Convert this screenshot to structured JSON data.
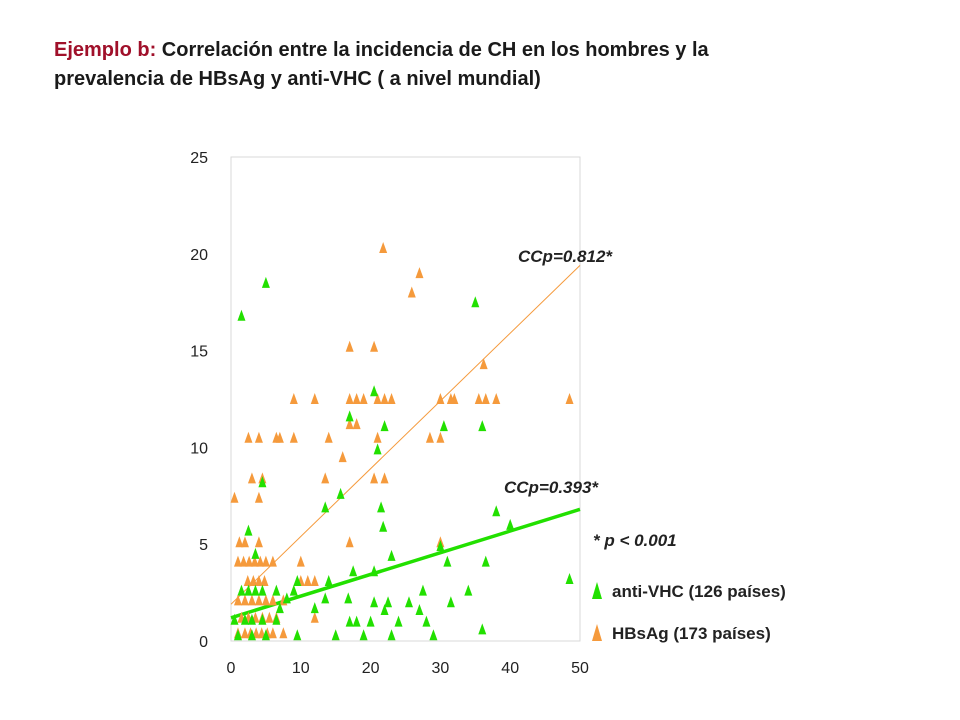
{
  "title": {
    "prefix": "Ejemplo b:",
    "line1": " Correlación entre la incidencia de CH en los hombres y la",
    "line2": "prevalencia de HBsAg y anti-VHC ( a nivel mundial)"
  },
  "chart_data": {
    "type": "scatter",
    "xlim": [
      0,
      50
    ],
    "ylim": [
      0,
      25
    ],
    "xticks": [
      "0",
      "10",
      "20",
      "30",
      "40",
      "50"
    ],
    "yticks": [
      "0",
      "5",
      "10",
      "15",
      "20",
      "25"
    ],
    "grid": false,
    "legend_position": "right",
    "colors": {
      "anti_vhc": "#22e000",
      "hbsag": "#f59a3c"
    },
    "annotations": {
      "ccp_hbsag": "CCp=0.812*",
      "ccp_antivhc": "CCp=0.393*",
      "pvalue": "* p < 0.001"
    },
    "series": [
      {
        "name": "HBsAg (173 países)",
        "color": "#f59a3c",
        "marker": "triangle",
        "trendline": {
          "x": [
            0,
            50
          ],
          "y": [
            1.9,
            19.4
          ]
        },
        "points": [
          [
            21.8,
            20.3
          ],
          [
            27,
            19
          ],
          [
            25.9,
            18
          ],
          [
            17,
            15.2
          ],
          [
            20.5,
            15.2
          ],
          [
            36.2,
            14.3
          ],
          [
            9,
            12.5
          ],
          [
            12,
            12.5
          ],
          [
            17,
            12.5
          ],
          [
            18,
            12.5
          ],
          [
            19,
            12.5
          ],
          [
            21,
            12.5
          ],
          [
            22,
            12.5
          ],
          [
            23,
            12.5
          ],
          [
            30,
            12.5
          ],
          [
            31.5,
            12.5
          ],
          [
            32,
            12.5
          ],
          [
            35.5,
            12.5
          ],
          [
            36.5,
            12.5
          ],
          [
            38,
            12.5
          ],
          [
            48.5,
            12.5
          ],
          [
            17,
            11.2
          ],
          [
            18,
            11.2
          ],
          [
            2.5,
            10.5
          ],
          [
            4,
            10.5
          ],
          [
            6.5,
            10.5
          ],
          [
            7,
            10.5
          ],
          [
            9,
            10.5
          ],
          [
            14,
            10.5
          ],
          [
            21,
            10.5
          ],
          [
            28.5,
            10.5
          ],
          [
            30,
            10.5
          ],
          [
            16,
            9.5
          ],
          [
            3,
            8.4
          ],
          [
            4.5,
            8.4
          ],
          [
            13.5,
            8.4
          ],
          [
            20.5,
            8.4
          ],
          [
            22,
            8.4
          ],
          [
            0.5,
            7.4
          ],
          [
            4,
            7.4
          ],
          [
            1.2,
            5.1
          ],
          [
            2,
            5.1
          ],
          [
            4,
            5.1
          ],
          [
            17,
            5.1
          ],
          [
            30,
            5.1
          ],
          [
            1,
            4.1
          ],
          [
            1.8,
            4.1
          ],
          [
            2.6,
            4.1
          ],
          [
            3.4,
            4.1
          ],
          [
            4.2,
            4.1
          ],
          [
            5,
            4.1
          ],
          [
            6,
            4.1
          ],
          [
            10,
            4.1
          ],
          [
            2.4,
            3.1
          ],
          [
            3.2,
            3.1
          ],
          [
            4,
            3.1
          ],
          [
            4.8,
            3.1
          ],
          [
            10,
            3.1
          ],
          [
            11,
            3.1
          ],
          [
            12,
            3.1
          ],
          [
            1,
            2.1
          ],
          [
            2,
            2.1
          ],
          [
            3,
            2.1
          ],
          [
            4,
            2.1
          ],
          [
            5,
            2.1
          ],
          [
            6,
            2.1
          ],
          [
            7.5,
            2.1
          ],
          [
            1.5,
            1.2
          ],
          [
            2.5,
            1.2
          ],
          [
            3.5,
            1.2
          ],
          [
            4.5,
            1.2
          ],
          [
            5.5,
            1.2
          ],
          [
            6.5,
            1.2
          ],
          [
            12,
            1.2
          ],
          [
            1,
            0.4
          ],
          [
            2,
            0.4
          ],
          [
            2.8,
            0.4
          ],
          [
            3.6,
            0.4
          ],
          [
            4.4,
            0.4
          ],
          [
            5.2,
            0.4
          ],
          [
            6,
            0.4
          ],
          [
            7.5,
            0.4
          ]
        ]
      },
      {
        "name": "anti-VHC (126 países)",
        "color": "#22e000",
        "marker": "triangle",
        "trendline": {
          "x": [
            0,
            50
          ],
          "y": [
            1.2,
            6.8
          ]
        },
        "points": [
          [
            1.5,
            16.8
          ],
          [
            5,
            18.5
          ],
          [
            35,
            17.5
          ],
          [
            20.5,
            12.9
          ],
          [
            17,
            11.6
          ],
          [
            22,
            11.1
          ],
          [
            30.5,
            11.1
          ],
          [
            36,
            11.1
          ],
          [
            21,
            9.9
          ],
          [
            4.5,
            8.2
          ],
          [
            15.7,
            7.6
          ],
          [
            13.5,
            6.9
          ],
          [
            21.5,
            6.9
          ],
          [
            38,
            6.7
          ],
          [
            40,
            6
          ],
          [
            21.8,
            5.9
          ],
          [
            2.5,
            5.7
          ],
          [
            30,
            4.9
          ],
          [
            3.5,
            4.5
          ],
          [
            23,
            4.4
          ],
          [
            31,
            4.1
          ],
          [
            36.5,
            4.1
          ],
          [
            17.5,
            3.6
          ],
          [
            20.5,
            3.6
          ],
          [
            48.5,
            3.2
          ],
          [
            9.5,
            3.1
          ],
          [
            14,
            3.1
          ],
          [
            1.5,
            2.6
          ],
          [
            2.5,
            2.6
          ],
          [
            3.5,
            2.6
          ],
          [
            4.5,
            2.6
          ],
          [
            6.5,
            2.6
          ],
          [
            9,
            2.6
          ],
          [
            27.5,
            2.6
          ],
          [
            34,
            2.6
          ],
          [
            8,
            2.2
          ],
          [
            13.5,
            2.2
          ],
          [
            16.8,
            2.2
          ],
          [
            20.5,
            2
          ],
          [
            22.5,
            2
          ],
          [
            25.5,
            2
          ],
          [
            31.5,
            2
          ],
          [
            7,
            1.7
          ],
          [
            12,
            1.7
          ],
          [
            22,
            1.6
          ],
          [
            27,
            1.6
          ],
          [
            0.5,
            1.1
          ],
          [
            2,
            1.1
          ],
          [
            3,
            1.1
          ],
          [
            4.5,
            1.1
          ],
          [
            6.5,
            1.1
          ],
          [
            17,
            1
          ],
          [
            18,
            1
          ],
          [
            20,
            1
          ],
          [
            24,
            1
          ],
          [
            28,
            1
          ],
          [
            36,
            0.6
          ],
          [
            1,
            0.3
          ],
          [
            3,
            0.3
          ],
          [
            5,
            0.3
          ],
          [
            9.5,
            0.3
          ],
          [
            15,
            0.3
          ],
          [
            19,
            0.3
          ],
          [
            23,
            0.3
          ],
          [
            29,
            0.3
          ]
        ]
      }
    ]
  }
}
